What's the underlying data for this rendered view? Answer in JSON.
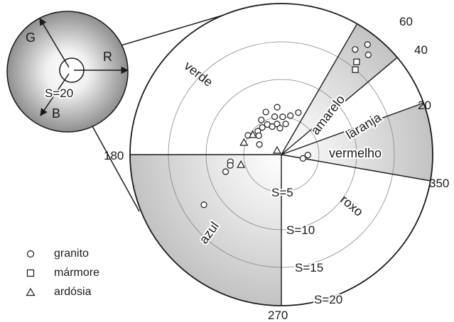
{
  "polar_plot": {
    "angle_labels": [
      "60",
      "40",
      "20",
      "350",
      "270",
      "180"
    ],
    "ring_labels": [
      "S=5",
      "S=10",
      "S=15",
      "S=20"
    ],
    "sector_labels": [
      "verde",
      "amarelo",
      "laranja",
      "vermelho",
      "roxo",
      "azul"
    ]
  },
  "rgb_sphere": {
    "axis_labels": [
      "G",
      "R",
      "B"
    ],
    "saturation_label": "S=20"
  },
  "legend": [
    {
      "symbol": "circle",
      "label": "granito"
    },
    {
      "symbol": "square",
      "label": "mármore"
    },
    {
      "symbol": "triangle",
      "label": "ardósia"
    }
  ],
  "chart_data": {
    "type": "scatter",
    "angle_unit": "degrees",
    "radius_quantity": "S",
    "radius_range": [
      0,
      20
    ],
    "sectors": [
      {
        "name": "verde",
        "from": 60,
        "to": 180,
        "shaded": false
      },
      {
        "name": "amarelo",
        "from": 40,
        "to": 60,
        "shaded": true
      },
      {
        "name": "laranja",
        "from": 20,
        "to": 40,
        "shaded": false
      },
      {
        "name": "vermelho",
        "from": 350,
        "to": 20,
        "shaded": true
      },
      {
        "name": "roxo",
        "from": 270,
        "to": 350,
        "shaded": false
      },
      {
        "name": "azul",
        "from": 180,
        "to": 270,
        "shaded": true
      }
    ],
    "series": [
      {
        "name": "granito",
        "marker": "circle",
        "points": [
          {
            "angle": 52,
            "S": 18.5
          },
          {
            "angle": 49,
            "S": 17.5
          },
          {
            "angle": 55,
            "S": 17.0
          },
          {
            "angle": 68,
            "S": 6.0
          },
          {
            "angle": 95,
            "S": 6.3
          },
          {
            "angle": 110,
            "S": 6.0
          },
          {
            "angle": 77,
            "S": 5.3
          },
          {
            "angle": 88,
            "S": 5.0
          },
          {
            "angle": 100,
            "S": 5.1
          },
          {
            "angle": 120,
            "S": 5.3
          },
          {
            "angle": 115,
            "S": 4.4
          },
          {
            "angle": 98,
            "S": 4.1
          },
          {
            "angle": 82,
            "S": 4.1
          },
          {
            "angle": 93,
            "S": 3.5
          },
          {
            "angle": 108,
            "S": 3.9
          },
          {
            "angle": 125,
            "S": 4.4
          },
          {
            "angle": 135,
            "S": 4.4
          },
          {
            "angle": 150,
            "S": 5.1
          },
          {
            "angle": 140,
            "S": 3.9
          },
          {
            "angle": 155,
            "S": 3.2
          },
          {
            "angle": 350,
            "S": 2.9
          },
          {
            "angle": 359,
            "S": 3.5
          },
          {
            "angle": 188,
            "S": 6.8
          },
          {
            "angle": 192,
            "S": 6.9
          },
          {
            "angle": 197,
            "S": 7.7
          },
          {
            "angle": 213,
            "S": 12.2
          }
        ]
      },
      {
        "name": "mármore",
        "marker": "square",
        "points": [
          {
            "angle": 51,
            "S": 15.8
          },
          {
            "angle": 49,
            "S": 14.9
          }
        ]
      },
      {
        "name": "ardósia",
        "marker": "triangle",
        "points": [
          {
            "angle": 162,
            "S": 5.2
          },
          {
            "angle": 145,
            "S": 4.6
          },
          {
            "angle": 135,
            "S": 0.8
          },
          {
            "angle": 194,
            "S": 5.5
          }
        ]
      }
    ]
  }
}
